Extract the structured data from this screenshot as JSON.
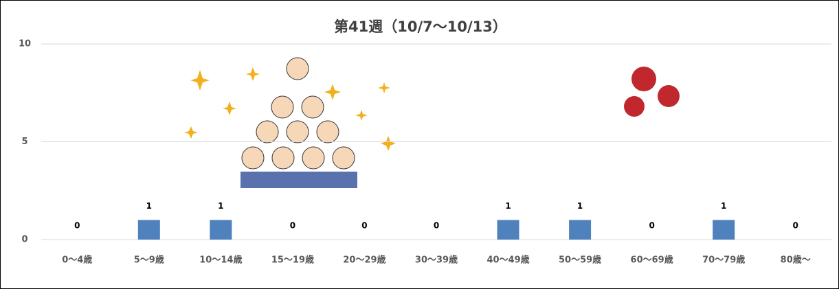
{
  "chart_data": {
    "type": "bar",
    "title": "第41週（10/7～10/13）",
    "categories": [
      "0～4歳",
      "5～9歳",
      "10～14歳",
      "15～19歳",
      "20～29歳",
      "30～39歳",
      "40～49歳",
      "50～59歳",
      "60～69歳",
      "70～79歳",
      "80歳～"
    ],
    "values": [
      0,
      1,
      1,
      0,
      0,
      0,
      1,
      1,
      0,
      1,
      0
    ],
    "color": "#4f81bd",
    "ylim": [
      0,
      10
    ],
    "yticks": [
      0,
      5,
      10
    ],
    "grid": true,
    "data_labels": true
  }
}
